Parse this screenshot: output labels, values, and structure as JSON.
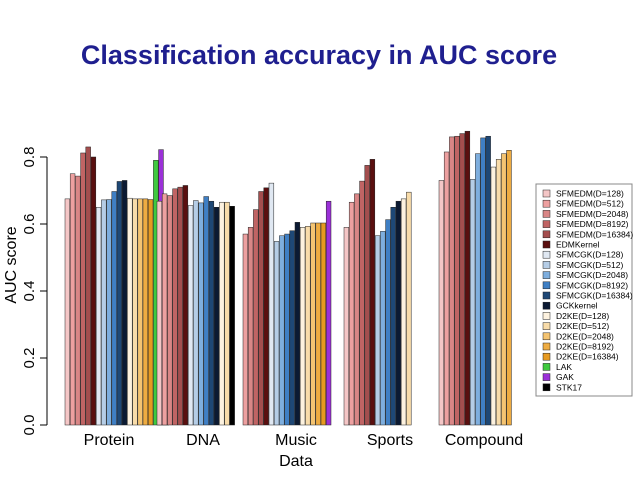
{
  "chart_data": {
    "type": "bar",
    "title": "Classification accuracy in AUC score",
    "xlabel": "Data",
    "ylabel": "AUC score",
    "ylim": [
      0,
      0.9
    ],
    "yticks": [
      "0.0",
      "0.2",
      "0.4",
      "0.6",
      "0.8"
    ],
    "legend_position": "right",
    "categories": [
      "Protein",
      "DNA",
      "Music",
      "Sports",
      "Compound"
    ],
    "series": [
      {
        "name": "SFMEDM(D=128)",
        "color": "#f4c6c6",
        "values": [
          0.675,
          0.668,
          0.0,
          0.59,
          0.73
        ]
      },
      {
        "name": "SFMEDM(D=512)",
        "color": "#eda0a0",
        "values": [
          0.75,
          0.69,
          0.57,
          0.665,
          0.815
        ]
      },
      {
        "name": "SFMEDM(D=2048)",
        "color": "#d98686",
        "values": [
          0.743,
          0.685,
          0.59,
          0.69,
          0.86
        ]
      },
      {
        "name": "SFMEDM(D=8192)",
        "color": "#c06464",
        "values": [
          0.812,
          0.705,
          0.643,
          0.728,
          0.862
        ]
      },
      {
        "name": "SFMEDM(D=16384)",
        "color": "#a44e4e",
        "values": [
          0.83,
          0.71,
          0.697,
          0.775,
          0.87
        ]
      },
      {
        "name": "EDMKernel",
        "color": "#5a0f0f",
        "values": [
          0.8,
          0.715,
          0.708,
          0.793,
          0.877
        ]
      },
      {
        "name": "SFMCGK(D=128)",
        "color": "#e0e8f2",
        "values": [
          0.65,
          0.655,
          0.722,
          0.0,
          0.0
        ]
      },
      {
        "name": "SFMCGK(D=512)",
        "color": "#b5cde6",
        "values": [
          0.672,
          0.67,
          0.548,
          0.565,
          0.733
        ]
      },
      {
        "name": "SFMCGK(D=2048)",
        "color": "#7eaede",
        "values": [
          0.673,
          0.663,
          0.565,
          0.578,
          0.81
        ]
      },
      {
        "name": "SFMCGK(D=8192)",
        "color": "#3f7fc4",
        "values": [
          0.697,
          0.682,
          0.57,
          0.613,
          0.857
        ]
      },
      {
        "name": "SFMCGK(D=16384)",
        "color": "#1e4876",
        "values": [
          0.727,
          0.668,
          0.58,
          0.65,
          0.862
        ]
      },
      {
        "name": "GCKkernel",
        "color": "#0b1a33",
        "values": [
          0.73,
          0.65,
          0.605,
          0.668,
          0.0
        ]
      },
      {
        "name": "D2KE(D=128)",
        "color": "#fdf2df",
        "values": [
          0.677,
          0.665,
          0.59,
          0.675,
          0.77
        ]
      },
      {
        "name": "D2KE(D=512)",
        "color": "#f8dcaa",
        "values": [
          0.675,
          0.665,
          0.593,
          0.695,
          0.793
        ]
      },
      {
        "name": "D2KE(D=2048)",
        "color": "#f4c472",
        "values": [
          0.675,
          0.0,
          0.603,
          0.0,
          0.81
        ]
      },
      {
        "name": "D2KE(D=8192)",
        "color": "#eeac42",
        "values": [
          0.675,
          0.0,
          0.603,
          0.0,
          0.82
        ]
      },
      {
        "name": "D2KE(D=16384)",
        "color": "#e69a21",
        "values": [
          0.673,
          0.0,
          0.603,
          0.0,
          0.0
        ]
      },
      {
        "name": "LAK",
        "color": "#3fc93f",
        "values": [
          0.79,
          0.0,
          0.0,
          0.0,
          0.0
        ]
      },
      {
        "name": "GAK",
        "color": "#9b30d8",
        "values": [
          0.822,
          0.0,
          0.668,
          0.0,
          0.0
        ]
      },
      {
        "name": "STK17",
        "color": "#000000",
        "values": [
          0.663,
          0.653,
          0.0,
          0.0,
          0.0
        ]
      }
    ]
  }
}
